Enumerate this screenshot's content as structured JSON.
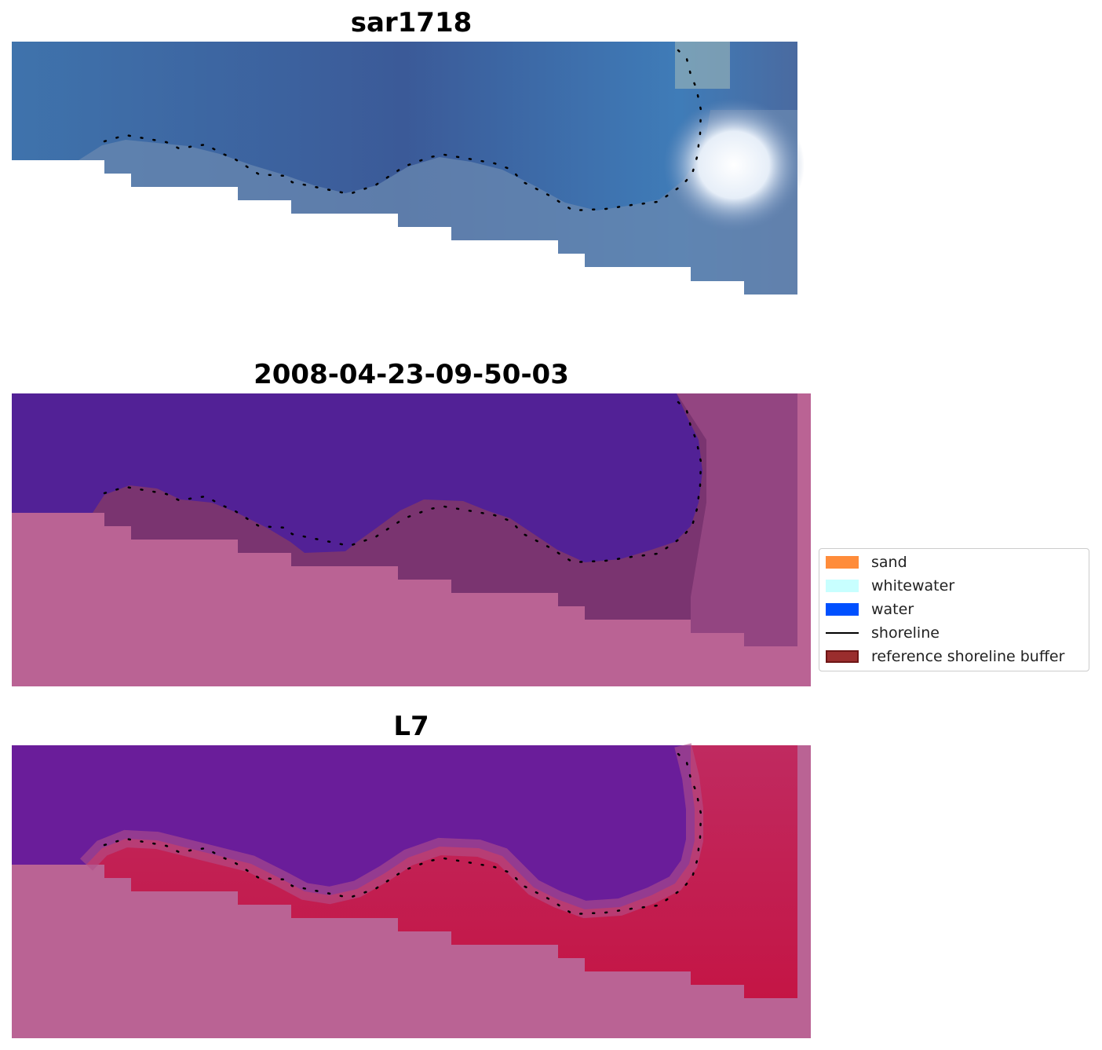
{
  "panels": [
    {
      "title": "sar1718"
    },
    {
      "title": "2008-04-23-09-50-03"
    },
    {
      "title": "L7"
    }
  ],
  "legend": {
    "items": [
      {
        "label": "sand",
        "color": "#ff8c3a"
      },
      {
        "label": "whitewater",
        "color": "#c8ffff"
      },
      {
        "label": "water",
        "color": "#0050ff"
      },
      {
        "label": "shoreline",
        "color": "#000000"
      },
      {
        "label": "reference shoreline buffer",
        "color": "#9a2d2d"
      }
    ]
  },
  "colors": {
    "rgb_water": "#3f6aa8",
    "class_water": "#522196",
    "class_land": "#ba6394",
    "class_buffer": "#7a3470",
    "ndwi_water": "#6a1d9a",
    "ndwi_land": "#c8184a"
  }
}
